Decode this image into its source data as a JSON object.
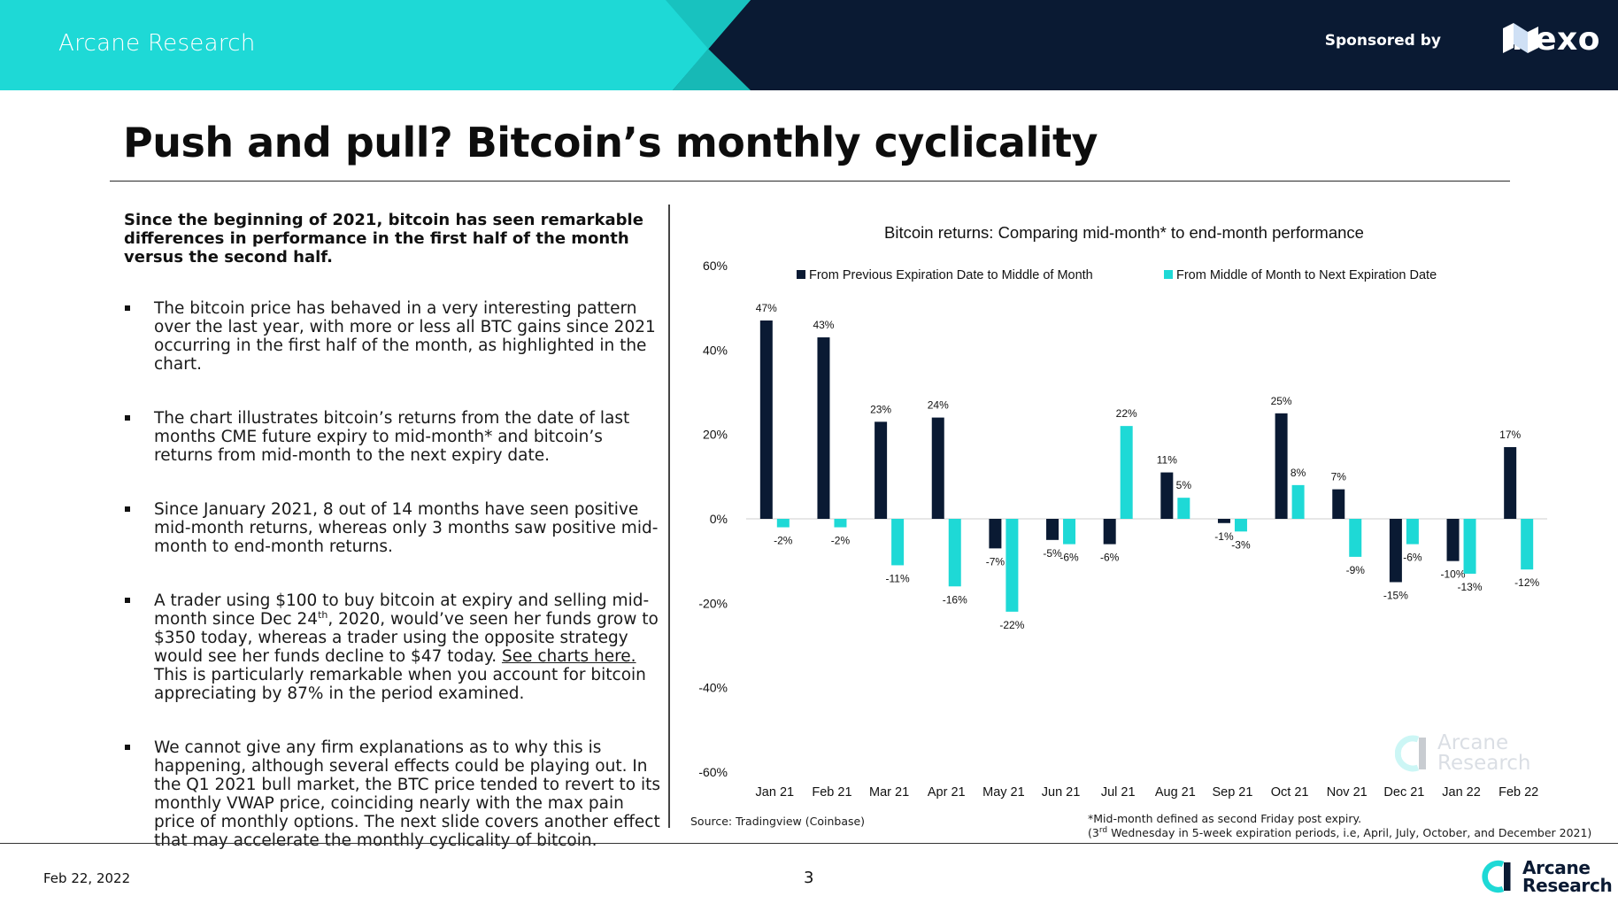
{
  "header": {
    "brand": "Arcane Research",
    "sponsor_label": "Sponsored by",
    "sponsor_name": "nexo"
  },
  "title": "Push and pull? Bitcoin’s monthly cyclicality",
  "intro": "Since the beginning of 2021, bitcoin has seen remarkable differences in performance in the first half of the month versus the second half.",
  "bullets": {
    "b1": "The bitcoin price has behaved in a very interesting pattern over the last year, with more or less all BTC gains since 2021 occurring in the first half of the month, as highlighted in the chart.",
    "b2": "The chart illustrates bitcoin’s returns from the date of last months CME future expiry to mid-month* and bitcoin’s returns from mid-month to the next expiry date.",
    "b3": "Since January 2021, 8 out of 14 months have seen positive mid-month returns, whereas only 3 months saw positive mid-month to end-month returns.",
    "b4_a": "A trader using $100 to buy bitcoin at expiry and selling mid-month since Dec 24",
    "b4_sup": "th",
    "b4_b": ", 2020, would’ve seen her funds grow to $350 today, whereas a trader using the opposite strategy would see her funds decline to $47 today. ",
    "b4_link": "See charts here.",
    "b4_c": " This is particularly remarkable when you account for bitcoin appreciating by 87% in the period examined.",
    "b5": "We cannot give any firm explanations as to why this is happening, although several effects could be playing out. In the Q1 2021 bull market, the BTC price tended to revert to its monthly VWAP price, coinciding nearly with the max pain price of monthly options. The next slide covers another effect that may accelerate the monthly cyclicality of bitcoin."
  },
  "chart_data": {
    "type": "bar",
    "title": "Bitcoin returns: Comparing mid-month* to end-month performance",
    "xlabel": "",
    "ylabel": "",
    "categories": [
      "Jan 21",
      "Feb 21",
      "Mar 21",
      "Apr 21",
      "May 21",
      "Jun 21",
      "Jul 21",
      "Aug 21",
      "Sep 21",
      "Oct 21",
      "Nov 21",
      "Dec 21",
      "Jan 22",
      "Feb 22"
    ],
    "series": [
      {
        "name": "From Previous Expiration Date to Middle of Month",
        "color": "#0a1a33",
        "values": [
          47,
          43,
          23,
          24,
          -7,
          -5,
          -6,
          11,
          -1,
          25,
          7,
          -15,
          -10,
          17
        ],
        "labels": [
          "47%",
          "43%",
          "23%",
          "24%",
          "-7%",
          "-5%",
          "-6%",
          "11%",
          "-1%",
          "25%",
          "7%",
          "-15%",
          "-10%",
          "17%"
        ]
      },
      {
        "name": "From Middle of Month to Next Expiration Date",
        "color": "#1ed9d6",
        "values": [
          -2,
          -2,
          -11,
          -16,
          -22,
          -6,
          22,
          5,
          -3,
          8,
          -9,
          -6,
          -13,
          -12
        ],
        "labels": [
          "-2%",
          "-2%",
          "-11%",
          "-16%",
          "-22%",
          "-6%",
          "22%",
          "5%",
          "-3%",
          "8%",
          "-9%",
          "-6%",
          "-13%",
          "-12%"
        ]
      }
    ],
    "ylim": [
      -60,
      60
    ],
    "yticks": [
      60,
      40,
      20,
      0,
      -20,
      -40,
      -60
    ],
    "ytick_labels": [
      "60%",
      "40%",
      "20%",
      "0%",
      "-20%",
      "-40%",
      "-60%"
    ],
    "grid": false,
    "legend": "top"
  },
  "source": "Source: Tradingview (Coinbase)",
  "footnote": {
    "line1": "*Mid-month defined as second Friday post expiry.",
    "line2_a": "(3",
    "line2_sup": "rd",
    "line2_b": " Wednesday in 5-week expiration periods, i.e, April, July, October, and December 2021)"
  },
  "watermark": {
    "line1": "Arcane",
    "line2": "Research"
  },
  "footer": {
    "date": "Feb 22, 2022",
    "page": "3",
    "logo_line1": "Arcane",
    "logo_line2": "Research"
  }
}
